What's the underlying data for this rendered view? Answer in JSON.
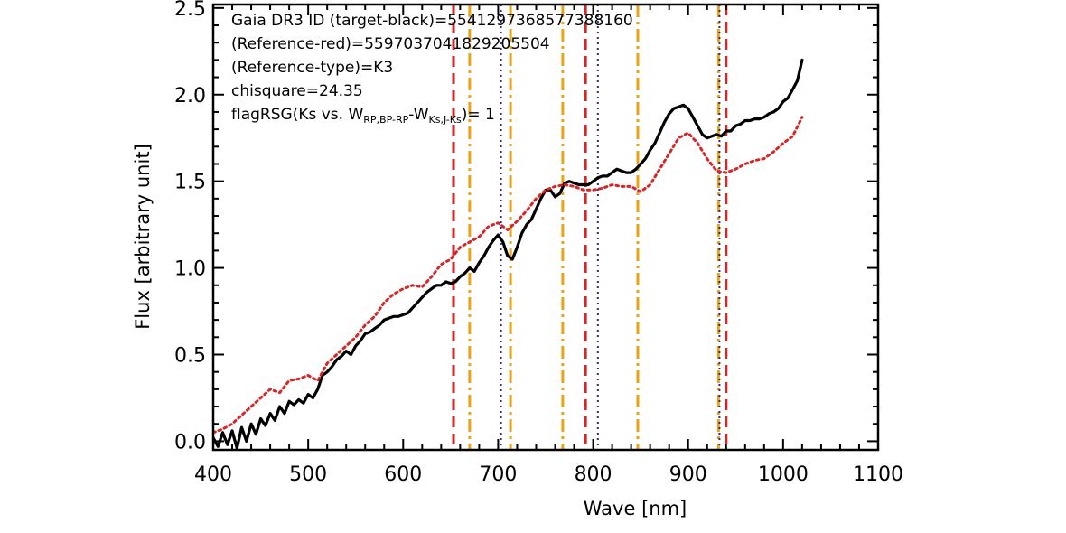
{
  "chart_data": {
    "type": "line",
    "xlabel": "Wave [nm]",
    "ylabel": "Flux [arbitrary unit]",
    "xlim": [
      400,
      1100
    ],
    "ylim": [
      -0.05,
      2.52
    ],
    "x_ticks": [
      400,
      500,
      600,
      700,
      800,
      900,
      1000,
      1100
    ],
    "x_tick_labels": [
      "400",
      "500",
      "600",
      "700",
      "800",
      "900",
      "1000",
      "1100"
    ],
    "y_ticks": [
      0.0,
      0.5,
      1.0,
      1.5,
      2.0,
      2.5
    ],
    "y_tick_labels": [
      "0.0",
      "0.5",
      "1.0",
      "1.5",
      "2.0",
      "2.5"
    ],
    "grid": false,
    "annotations": {
      "line1": "Gaia DR3 ID (target-black)=5541297368577388160",
      "line2": "(Reference-red)=5597037041829205504",
      "line3": "(Reference-type)=K3",
      "line4": "chisquare=24.35",
      "line5_prefix": "flagRSG(Ks vs. W",
      "line5_sub1": "RP,BP-RP",
      "line5_mid": "-W",
      "line5_sub2": "Ks,J-Ks",
      "line5_suffix": ")= 1"
    },
    "colors": {
      "target": "#000000",
      "reference": "#d62728",
      "red_dashed": "#d62728",
      "orange_dashdot": "#e8a317",
      "navy_dotted": "#2b2b8c"
    },
    "vlines": {
      "red_dashed": [
        653,
        792,
        940
      ],
      "orange_dashdot": [
        670,
        713,
        768,
        847,
        932
      ],
      "navy_dotted": [
        703,
        805,
        933
      ]
    },
    "series": [
      {
        "style": "solid-black",
        "x": [
          400,
          405,
          410,
          415,
          420,
          425,
          430,
          435,
          440,
          445,
          450,
          455,
          460,
          465,
          470,
          475,
          480,
          485,
          490,
          495,
          500,
          505,
          510,
          515,
          520,
          525,
          530,
          535,
          540,
          545,
          550,
          555,
          560,
          565,
          570,
          575,
          580,
          585,
          590,
          595,
          600,
          605,
          610,
          615,
          620,
          625,
          630,
          635,
          640,
          645,
          650,
          655,
          660,
          665,
          670,
          675,
          680,
          685,
          690,
          695,
          700,
          705,
          710,
          715,
          720,
          725,
          730,
          735,
          740,
          745,
          750,
          755,
          760,
          765,
          770,
          775,
          780,
          785,
          790,
          795,
          800,
          805,
          810,
          815,
          820,
          825,
          830,
          835,
          840,
          845,
          850,
          855,
          860,
          865,
          870,
          875,
          880,
          885,
          890,
          895,
          900,
          905,
          910,
          915,
          920,
          925,
          930,
          935,
          940,
          945,
          950,
          955,
          960,
          965,
          970,
          975,
          980,
          985,
          990,
          995,
          1000,
          1005,
          1010,
          1015,
          1020
        ],
        "y": [
          0.02,
          -0.03,
          0.05,
          -0.02,
          0.06,
          -0.04,
          0.08,
          0.0,
          0.1,
          0.04,
          0.13,
          0.09,
          0.16,
          0.12,
          0.2,
          0.16,
          0.23,
          0.21,
          0.24,
          0.22,
          0.27,
          0.25,
          0.3,
          0.38,
          0.4,
          0.43,
          0.47,
          0.49,
          0.52,
          0.5,
          0.55,
          0.58,
          0.62,
          0.63,
          0.65,
          0.67,
          0.7,
          0.71,
          0.72,
          0.72,
          0.73,
          0.74,
          0.77,
          0.8,
          0.83,
          0.86,
          0.88,
          0.9,
          0.9,
          0.92,
          0.91,
          0.92,
          0.95,
          0.97,
          1.0,
          0.98,
          1.03,
          1.07,
          1.12,
          1.16,
          1.19,
          1.15,
          1.07,
          1.05,
          1.12,
          1.2,
          1.25,
          1.28,
          1.34,
          1.4,
          1.45,
          1.45,
          1.41,
          1.43,
          1.49,
          1.5,
          1.49,
          1.48,
          1.48,
          1.48,
          1.5,
          1.52,
          1.53,
          1.53,
          1.55,
          1.57,
          1.56,
          1.55,
          1.55,
          1.57,
          1.6,
          1.63,
          1.68,
          1.72,
          1.78,
          1.84,
          1.89,
          1.92,
          1.93,
          1.94,
          1.92,
          1.87,
          1.82,
          1.77,
          1.75,
          1.76,
          1.77,
          1.76,
          1.79,
          1.79,
          1.82,
          1.83,
          1.85,
          1.85,
          1.86,
          1.86,
          1.87,
          1.89,
          1.9,
          1.92,
          1.96,
          1.98,
          2.03,
          2.08,
          2.2
        ]
      },
      {
        "style": "dotted-red",
        "x": [
          400,
          410,
          420,
          430,
          440,
          450,
          460,
          470,
          480,
          490,
          500,
          510,
          520,
          530,
          540,
          550,
          560,
          570,
          580,
          590,
          600,
          610,
          620,
          630,
          640,
          650,
          660,
          670,
          680,
          690,
          700,
          710,
          720,
          730,
          740,
          750,
          760,
          770,
          780,
          790,
          800,
          810,
          820,
          830,
          840,
          850,
          860,
          870,
          880,
          890,
          900,
          910,
          920,
          930,
          940,
          950,
          960,
          970,
          980,
          990,
          1000,
          1010,
          1020
        ],
        "y": [
          0.05,
          0.07,
          0.1,
          0.15,
          0.2,
          0.25,
          0.3,
          0.28,
          0.35,
          0.36,
          0.38,
          0.35,
          0.45,
          0.5,
          0.55,
          0.6,
          0.67,
          0.72,
          0.8,
          0.85,
          0.88,
          0.9,
          0.89,
          0.95,
          1.02,
          1.05,
          1.12,
          1.15,
          1.18,
          1.24,
          1.26,
          1.22,
          1.27,
          1.33,
          1.4,
          1.45,
          1.47,
          1.48,
          1.47,
          1.45,
          1.45,
          1.46,
          1.48,
          1.47,
          1.47,
          1.44,
          1.48,
          1.57,
          1.66,
          1.75,
          1.78,
          1.72,
          1.63,
          1.56,
          1.55,
          1.57,
          1.6,
          1.62,
          1.63,
          1.67,
          1.72,
          1.76,
          1.87
        ]
      }
    ]
  }
}
